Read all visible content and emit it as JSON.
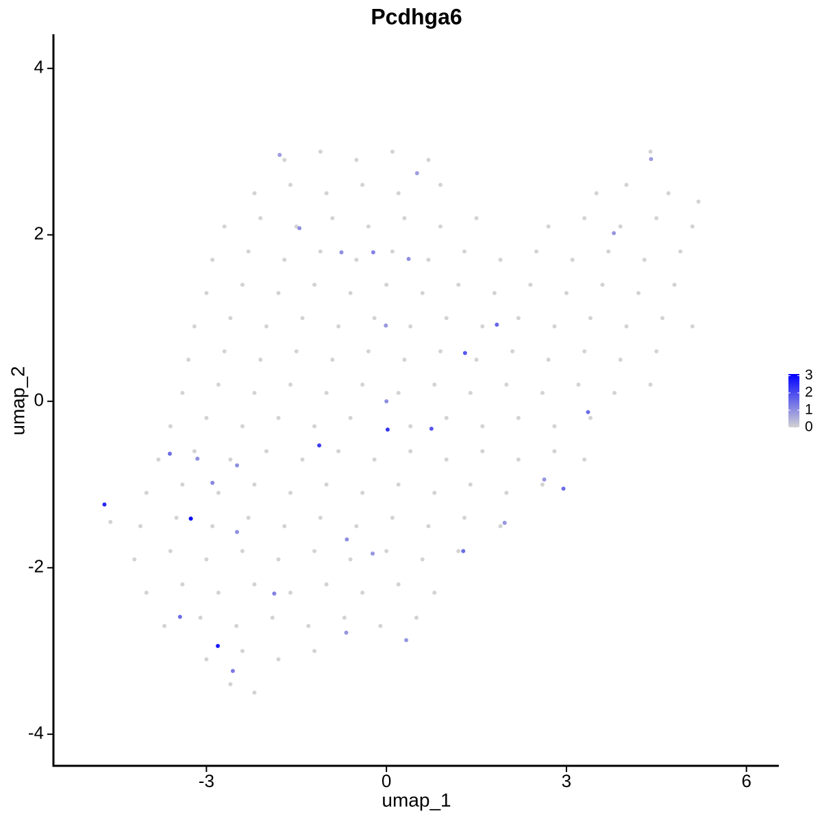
{
  "chart_data": {
    "type": "scatter",
    "title": "Pcdhga6",
    "x_label": "umap_1",
    "y_label": "umap_2",
    "xlim": [
      -5.55,
      6.54
    ],
    "ylim": [
      -4.38,
      4.41
    ],
    "xticks": [
      -3,
      0,
      3,
      6
    ],
    "yticks": [
      -4,
      -2,
      0,
      2,
      4
    ],
    "color_low": "#d3d3d3",
    "color_high": "#0000ff",
    "color_lim": [
      0,
      3.1
    ],
    "colorbar_ticks": [
      0,
      1,
      2,
      3
    ],
    "x": [
      -1.7,
      -1.1,
      -0.5,
      0.1,
      0.7,
      4.4,
      -2.2,
      -1.6,
      -1.0,
      -0.4,
      0.2,
      0.9,
      3.5,
      4.0,
      4.7,
      5.2,
      -2.7,
      -2.1,
      -1.5,
      -0.9,
      -0.3,
      0.3,
      0.9,
      1.5,
      2.7,
      3.3,
      3.9,
      4.5,
      5.1,
      -2.9,
      -2.3,
      -1.7,
      -1.1,
      -0.5,
      0.1,
      0.7,
      1.3,
      1.9,
      2.5,
      3.1,
      3.7,
      4.3,
      4.9,
      -3.0,
      -2.4,
      -1.8,
      -1.2,
      -0.6,
      0.0,
      0.6,
      1.2,
      1.8,
      2.4,
      3.0,
      3.6,
      4.2,
      4.8,
      -3.2,
      -2.6,
      -2.0,
      -1.4,
      -0.8,
      -0.2,
      0.4,
      1.0,
      1.6,
      2.2,
      2.8,
      3.4,
      4.0,
      4.6,
      5.1,
      -3.3,
      -2.7,
      -2.1,
      -1.5,
      -0.9,
      -0.3,
      0.3,
      0.9,
      1.5,
      2.1,
      2.7,
      3.3,
      3.9,
      4.5,
      -3.4,
      -2.8,
      -2.2,
      -1.6,
      -1.0,
      -0.4,
      0.2,
      0.8,
      1.4,
      2.0,
      2.6,
      3.2,
      3.8,
      4.4,
      -3.6,
      -3.0,
      -2.4,
      -1.8,
      -1.2,
      -0.6,
      0.4,
      1.0,
      1.6,
      2.2,
      2.8,
      3.4,
      -3.8,
      -3.2,
      -2.6,
      -2.0,
      -1.4,
      -0.8,
      -0.2,
      0.4,
      1.0,
      1.6,
      2.2,
      2.8,
      3.3,
      -4.0,
      -3.4,
      -2.8,
      -2.2,
      -1.6,
      -1.0,
      -0.4,
      0.2,
      0.8,
      1.4,
      2.0,
      2.6,
      -4.1,
      -3.5,
      -2.9,
      -2.3,
      -1.7,
      -1.1,
      -0.5,
      0.1,
      0.7,
      1.3,
      1.9,
      -4.2,
      -3.6,
      -3.0,
      -2.4,
      -1.8,
      -1.2,
      -0.6,
      0.0,
      0.6,
      1.2,
      -4.0,
      -3.4,
      -2.8,
      -2.2,
      -1.6,
      -1.0,
      -0.4,
      0.2,
      0.8,
      -3.7,
      -3.1,
      -2.5,
      -1.9,
      -1.3,
      -0.7,
      -0.1,
      0.5,
      -3.0,
      -2.4,
      -1.8,
      -1.2,
      -2.6,
      -2.2,
      -4.6,
      -4.7,
      -3.26,
      -2.81,
      -1.12,
      0.02,
      1.31,
      1.84,
      0.75,
      3.36,
      2.95,
      1.28,
      -3.61,
      -3.44,
      -2.56,
      -1.87,
      -0.22,
      0.37,
      -0.75,
      -1.45,
      -1.78,
      0.51,
      4.41,
      3.79,
      -0.01,
      -0.67,
      0.33,
      -2.49,
      -2.9,
      -2.49,
      2.63,
      1.97,
      -0.66,
      -0.23,
      0.0,
      -3.15
    ],
    "y": [
      2.9,
      3.0,
      2.9,
      3.0,
      2.9,
      3.0,
      2.5,
      2.6,
      2.5,
      2.6,
      2.5,
      2.6,
      2.5,
      2.6,
      2.5,
      2.4,
      2.1,
      2.2,
      2.1,
      2.2,
      2.1,
      2.2,
      2.1,
      2.2,
      2.1,
      2.2,
      2.1,
      2.2,
      2.1,
      1.7,
      1.8,
      1.7,
      1.8,
      1.7,
      1.8,
      1.7,
      1.8,
      1.7,
      1.8,
      1.7,
      1.8,
      1.7,
      1.8,
      1.3,
      1.4,
      1.3,
      1.4,
      1.3,
      1.4,
      1.3,
      1.4,
      1.3,
      1.4,
      1.3,
      1.4,
      1.3,
      1.4,
      0.9,
      1.0,
      0.9,
      1.0,
      0.9,
      1.0,
      0.9,
      1.0,
      0.9,
      1.0,
      0.9,
      1.0,
      0.9,
      1.0,
      0.9,
      0.5,
      0.6,
      0.5,
      0.6,
      0.5,
      0.6,
      0.5,
      0.6,
      0.5,
      0.6,
      0.5,
      0.6,
      0.5,
      0.6,
      0.1,
      0.2,
      0.1,
      0.2,
      0.1,
      0.2,
      0.1,
      0.2,
      0.1,
      0.2,
      0.1,
      0.2,
      0.1,
      0.2,
      -0.3,
      -0.2,
      -0.3,
      -0.2,
      -0.3,
      -0.2,
      -0.3,
      -0.2,
      -0.3,
      -0.2,
      -0.3,
      -0.2,
      -0.7,
      -0.6,
      -0.7,
      -0.6,
      -0.7,
      -0.6,
      -0.7,
      -0.6,
      -0.7,
      -0.6,
      -0.7,
      -0.6,
      -0.7,
      -1.1,
      -1.0,
      -1.1,
      -1.0,
      -1.1,
      -1.0,
      -1.1,
      -1.0,
      -1.1,
      -1.0,
      -1.1,
      -1.0,
      -1.5,
      -1.4,
      -1.5,
      -1.4,
      -1.5,
      -1.4,
      -1.5,
      -1.4,
      -1.5,
      -1.4,
      -1.5,
      -1.9,
      -1.8,
      -1.9,
      -1.8,
      -1.9,
      -1.8,
      -1.9,
      -1.8,
      -1.9,
      -1.8,
      -2.3,
      -2.2,
      -2.3,
      -2.2,
      -2.3,
      -2.2,
      -2.3,
      -2.2,
      -2.3,
      -2.7,
      -2.6,
      -2.7,
      -2.6,
      -2.7,
      -2.6,
      -2.7,
      -2.6,
      -3.1,
      -3.0,
      -3.1,
      -3.0,
      -3.4,
      -3.5,
      -1.45,
      -1.24,
      -1.41,
      -2.94,
      -0.53,
      -0.34,
      0.58,
      0.92,
      -0.33,
      -0.13,
      -1.05,
      -1.8,
      -0.63,
      -2.59,
      -3.24,
      -2.31,
      1.79,
      1.71,
      1.79,
      2.08,
      2.96,
      2.74,
      2.91,
      2.02,
      0.91,
      -2.78,
      -2.87,
      -1.57,
      -0.98,
      -0.77,
      -0.94,
      -1.46,
      -1.66,
      -1.83,
      0.0,
      -0.69
    ],
    "values": [
      0,
      0,
      0,
      0,
      0,
      0,
      0,
      0,
      0,
      0,
      0,
      0,
      0,
      0,
      0,
      0,
      0,
      0,
      0,
      0,
      0,
      0,
      0,
      0,
      0,
      0,
      0,
      0,
      0,
      0,
      0,
      0,
      0,
      0,
      0,
      0,
      0,
      0,
      0,
      0,
      0,
      0,
      0,
      0,
      0,
      0,
      0,
      0,
      0,
      0,
      0,
      0,
      0,
      0,
      0,
      0,
      0,
      0,
      0,
      0,
      0,
      0,
      0,
      0,
      0,
      0,
      0,
      0,
      0,
      0,
      0,
      0,
      0,
      0,
      0,
      0,
      0,
      0,
      0,
      0,
      0,
      0,
      0,
      0,
      0,
      0,
      0,
      0,
      0,
      0,
      0,
      0,
      0,
      0,
      0,
      0,
      0,
      0,
      0,
      0,
      0,
      0,
      0,
      0,
      0,
      0,
      0,
      0,
      0,
      0,
      0,
      0,
      0,
      0,
      0,
      0,
      0,
      0,
      0,
      0,
      0,
      0,
      0,
      0,
      0,
      0,
      0,
      0,
      0,
      0,
      0,
      0,
      0,
      0,
      0,
      0,
      0,
      0,
      0,
      0,
      0,
      0,
      0,
      0,
      0,
      0,
      0,
      0,
      0,
      0,
      0,
      0,
      0,
      0,
      0,
      0,
      0,
      0,
      0,
      0,
      0,
      0,
      0,
      0,
      0,
      0,
      0,
      0,
      0,
      0,
      0,
      0,
      0,
      0,
      0,
      0,
      0,
      0,
      0,
      0,
      0,
      0,
      2.5,
      3,
      2.7,
      2.2,
      2.3,
      1.8,
      1.6,
      1.8,
      1.5,
      1.5,
      1.5,
      1.5,
      1.5,
      1.3,
      1.2,
      1.2,
      1.0,
      1.0,
      1.0,
      0.8,
      0.8,
      0.8,
      0.9,
      0.9,
      0.9,
      0.9,
      1.0,
      1.1,
      1.0,
      0.9,
      0.9,
      1.0,
      0.9,
      1.0,
      1.0
    ]
  }
}
